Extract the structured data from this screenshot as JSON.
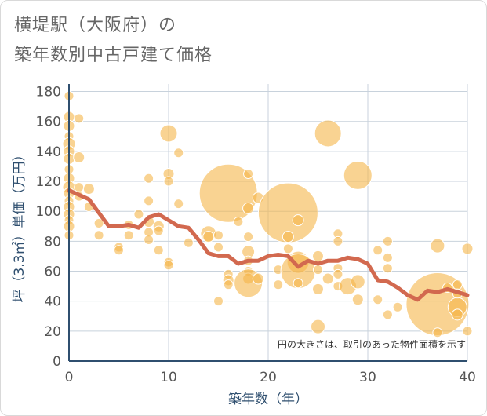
{
  "header": {
    "title_line1": "横堤駅（大阪府）の",
    "title_line2": "築年数別中古戸建て価格"
  },
  "chart_data": {
    "type": "scatter",
    "title": "横堤駅（大阪府）の築年数別中古戸建て価格",
    "xlabel": "築年数（年）",
    "ylabel": "坪（3.3㎡）単価（万円）",
    "xlim": [
      0,
      40
    ],
    "ylim": [
      0,
      185
    ],
    "x_ticks": [
      0,
      10,
      20,
      30,
      40
    ],
    "y_ticks": [
      0,
      20,
      40,
      60,
      80,
      100,
      120,
      140,
      160,
      180
    ],
    "grid": true,
    "note": "円の大きさは、取引のあった物件面積を示す",
    "colors": {
      "bubble": "#f5b54a",
      "line": "#d2694f",
      "grid": "#c8d2dc",
      "axis": "#2f4f6f"
    },
    "series": [
      {
        "type": "bubble",
        "points": [
          {
            "x": 0,
            "y": 177,
            "r": 6
          },
          {
            "x": 0,
            "y": 163,
            "r": 7
          },
          {
            "x": 0,
            "y": 157,
            "r": 7
          },
          {
            "x": 0,
            "y": 150,
            "r": 6
          },
          {
            "x": 0,
            "y": 145,
            "r": 8
          },
          {
            "x": 0,
            "y": 140,
            "r": 7
          },
          {
            "x": 0,
            "y": 135,
            "r": 7
          },
          {
            "x": 0,
            "y": 128,
            "r": 6
          },
          {
            "x": 0,
            "y": 122,
            "r": 7
          },
          {
            "x": 0,
            "y": 116,
            "r": 8
          },
          {
            "x": 0,
            "y": 112,
            "r": 7
          },
          {
            "x": 0,
            "y": 107,
            "r": 6
          },
          {
            "x": 0,
            "y": 103,
            "r": 7
          },
          {
            "x": 0,
            "y": 98,
            "r": 7
          },
          {
            "x": 0,
            "y": 94,
            "r": 6
          },
          {
            "x": 0,
            "y": 90,
            "r": 7
          },
          {
            "x": 0,
            "y": 84,
            "r": 6
          },
          {
            "x": 1,
            "y": 162,
            "r": 6
          },
          {
            "x": 1,
            "y": 136,
            "r": 7
          },
          {
            "x": 1,
            "y": 116,
            "r": 6
          },
          {
            "x": 1,
            "y": 110,
            "r": 6
          },
          {
            "x": 2,
            "y": 115,
            "r": 7
          },
          {
            "x": 2,
            "y": 103,
            "r": 6
          },
          {
            "x": 3,
            "y": 92,
            "r": 6
          },
          {
            "x": 3,
            "y": 84,
            "r": 6
          },
          {
            "x": 5,
            "y": 76,
            "r": 6
          },
          {
            "x": 5,
            "y": 74,
            "r": 6
          },
          {
            "x": 6,
            "y": 91,
            "r": 6
          },
          {
            "x": 6,
            "y": 84,
            "r": 6
          },
          {
            "x": 7,
            "y": 98,
            "r": 6
          },
          {
            "x": 8,
            "y": 122,
            "r": 6
          },
          {
            "x": 8,
            "y": 107,
            "r": 6
          },
          {
            "x": 8,
            "y": 93,
            "r": 7
          },
          {
            "x": 8,
            "y": 86,
            "r": 6
          },
          {
            "x": 8,
            "y": 81,
            "r": 6
          },
          {
            "x": 9,
            "y": 90,
            "r": 7
          },
          {
            "x": 9,
            "y": 87,
            "r": 6
          },
          {
            "x": 9,
            "y": 74,
            "r": 6
          },
          {
            "x": 10,
            "y": 152,
            "r": 11
          },
          {
            "x": 10,
            "y": 125,
            "r": 7
          },
          {
            "x": 10,
            "y": 120,
            "r": 6
          },
          {
            "x": 10,
            "y": 66,
            "r": 6
          },
          {
            "x": 10,
            "y": 64,
            "r": 6
          },
          {
            "x": 11,
            "y": 139,
            "r": 6
          },
          {
            "x": 11,
            "y": 105,
            "r": 6
          },
          {
            "x": 12,
            "y": 79,
            "r": 6
          },
          {
            "x": 14,
            "y": 85,
            "r": 10
          },
          {
            "x": 14,
            "y": 83,
            "r": 7
          },
          {
            "x": 15,
            "y": 84,
            "r": 6
          },
          {
            "x": 15,
            "y": 76,
            "r": 6
          },
          {
            "x": 15,
            "y": 40,
            "r": 6
          },
          {
            "x": 16,
            "y": 112,
            "r": 37
          },
          {
            "x": 16,
            "y": 58,
            "r": 6
          },
          {
            "x": 16,
            "y": 54,
            "r": 7
          },
          {
            "x": 16,
            "y": 51,
            "r": 6
          },
          {
            "x": 17,
            "y": 93,
            "r": 6
          },
          {
            "x": 18,
            "y": 125,
            "r": 6
          },
          {
            "x": 18,
            "y": 102,
            "r": 7
          },
          {
            "x": 18,
            "y": 83,
            "r": 6
          },
          {
            "x": 18,
            "y": 73,
            "r": 8
          },
          {
            "x": 18,
            "y": 67,
            "r": 6
          },
          {
            "x": 18,
            "y": 60,
            "r": 6
          },
          {
            "x": 18,
            "y": 55,
            "r": 7
          },
          {
            "x": 18,
            "y": 52,
            "r": 18
          },
          {
            "x": 19,
            "y": 109,
            "r": 7
          },
          {
            "x": 19,
            "y": 55,
            "r": 7
          },
          {
            "x": 22,
            "y": 99,
            "r": 38
          },
          {
            "x": 22,
            "y": 83,
            "r": 7
          },
          {
            "x": 22,
            "y": 75,
            "r": 6
          },
          {
            "x": 21,
            "y": 61,
            "r": 6
          },
          {
            "x": 21,
            "y": 51,
            "r": 6
          },
          {
            "x": 23,
            "y": 94,
            "r": 7
          },
          {
            "x": 23,
            "y": 66,
            "r": 14
          },
          {
            "x": 23,
            "y": 60,
            "r": 22
          },
          {
            "x": 23,
            "y": 52,
            "r": 6
          },
          {
            "x": 25,
            "y": 70,
            "r": 7
          },
          {
            "x": 25,
            "y": 61,
            "r": 6
          },
          {
            "x": 25,
            "y": 48,
            "r": 7
          },
          {
            "x": 25,
            "y": 23,
            "r": 9
          },
          {
            "x": 26,
            "y": 152,
            "r": 17
          },
          {
            "x": 26,
            "y": 55,
            "r": 7
          },
          {
            "x": 27,
            "y": 85,
            "r": 6
          },
          {
            "x": 27,
            "y": 80,
            "r": 6
          },
          {
            "x": 27,
            "y": 62,
            "r": 6
          },
          {
            "x": 27,
            "y": 58,
            "r": 6
          },
          {
            "x": 27,
            "y": 50,
            "r": 6
          },
          {
            "x": 28,
            "y": 50,
            "r": 11
          },
          {
            "x": 29,
            "y": 124,
            "r": 18
          },
          {
            "x": 29,
            "y": 53,
            "r": 9
          },
          {
            "x": 29,
            "y": 41,
            "r": 7
          },
          {
            "x": 31,
            "y": 74,
            "r": 6
          },
          {
            "x": 31,
            "y": 41,
            "r": 6
          },
          {
            "x": 32,
            "y": 80,
            "r": 6
          },
          {
            "x": 32,
            "y": 69,
            "r": 6
          },
          {
            "x": 32,
            "y": 62,
            "r": 6
          },
          {
            "x": 32,
            "y": 31,
            "r": 6
          },
          {
            "x": 33,
            "y": 36,
            "r": 6
          },
          {
            "x": 37,
            "y": 77,
            "r": 9
          },
          {
            "x": 37,
            "y": 38,
            "r": 40
          },
          {
            "x": 37,
            "y": 19,
            "r": 6
          },
          {
            "x": 38,
            "y": 49,
            "r": 6
          },
          {
            "x": 39,
            "y": 51,
            "r": 6
          },
          {
            "x": 39,
            "y": 45,
            "r": 6
          },
          {
            "x": 39,
            "y": 36,
            "r": 12
          },
          {
            "x": 39,
            "y": 31,
            "r": 7
          },
          {
            "x": 40,
            "y": 75,
            "r": 7
          },
          {
            "x": 40,
            "y": 20,
            "r": 6
          }
        ]
      },
      {
        "type": "line",
        "points": [
          {
            "x": 0,
            "y": 114
          },
          {
            "x": 1,
            "y": 111
          },
          {
            "x": 2,
            "y": 108
          },
          {
            "x": 3,
            "y": 99
          },
          {
            "x": 4,
            "y": 90
          },
          {
            "x": 5,
            "y": 90
          },
          {
            "x": 6,
            "y": 91
          },
          {
            "x": 7,
            "y": 89
          },
          {
            "x": 8,
            "y": 96
          },
          {
            "x": 9,
            "y": 98
          },
          {
            "x": 10,
            "y": 94
          },
          {
            "x": 11,
            "y": 90
          },
          {
            "x": 12,
            "y": 89
          },
          {
            "x": 13,
            "y": 81
          },
          {
            "x": 14,
            "y": 72
          },
          {
            "x": 15,
            "y": 70
          },
          {
            "x": 16,
            "y": 70
          },
          {
            "x": 17,
            "y": 65
          },
          {
            "x": 18,
            "y": 67
          },
          {
            "x": 19,
            "y": 67
          },
          {
            "x": 20,
            "y": 70
          },
          {
            "x": 21,
            "y": 71
          },
          {
            "x": 22,
            "y": 70
          },
          {
            "x": 23,
            "y": 63
          },
          {
            "x": 24,
            "y": 67
          },
          {
            "x": 25,
            "y": 65
          },
          {
            "x": 26,
            "y": 67
          },
          {
            "x": 27,
            "y": 67
          },
          {
            "x": 28,
            "y": 69
          },
          {
            "x": 29,
            "y": 68
          },
          {
            "x": 30,
            "y": 65
          },
          {
            "x": 31,
            "y": 54
          },
          {
            "x": 32,
            "y": 53
          },
          {
            "x": 33,
            "y": 49
          },
          {
            "x": 34,
            "y": 44
          },
          {
            "x": 35,
            "y": 41
          },
          {
            "x": 36,
            "y": 47
          },
          {
            "x": 37,
            "y": 46
          },
          {
            "x": 38,
            "y": 48
          },
          {
            "x": 39,
            "y": 46
          },
          {
            "x": 40,
            "y": 44
          }
        ]
      }
    ]
  }
}
